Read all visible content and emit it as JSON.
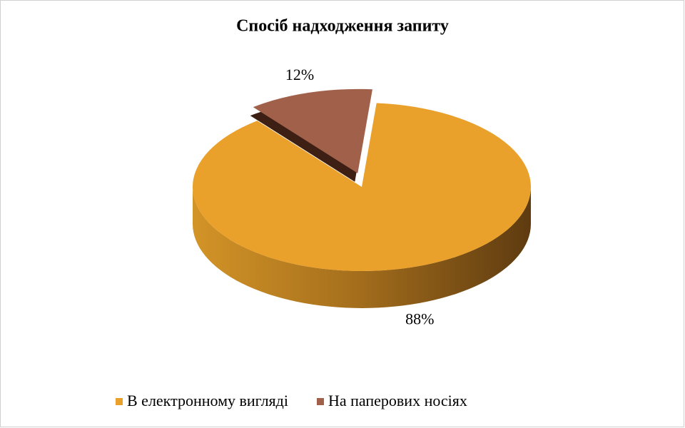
{
  "chart_data": {
    "type": "pie3d",
    "title": "Спосіб надходження запиту",
    "categories": [
      "В електронному вигляді",
      "На паперових носіях"
    ],
    "values": [
      88,
      12
    ],
    "value_labels": [
      "88%",
      "12%"
    ],
    "colors": [
      "#E9A12C",
      "#A0604A"
    ],
    "legend": "bottom"
  }
}
